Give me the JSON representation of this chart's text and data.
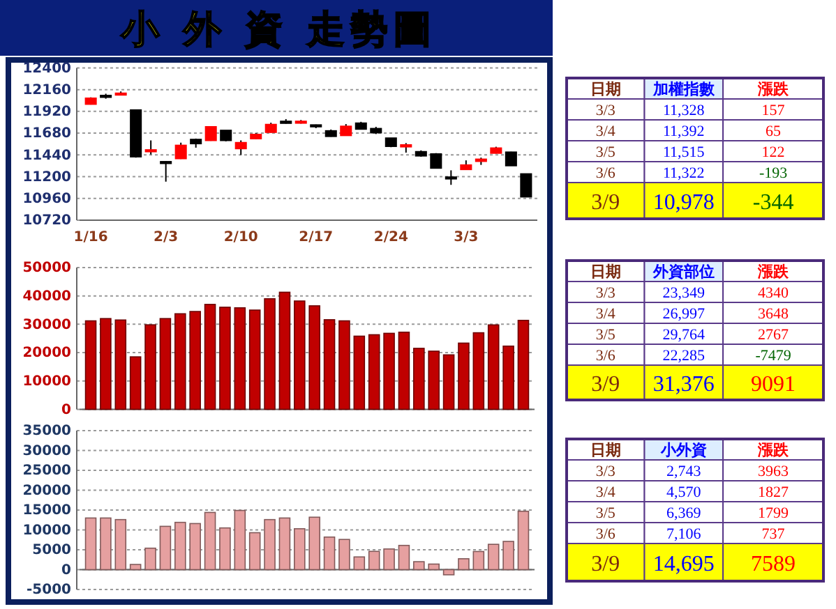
{
  "chart_data": [
    {
      "type": "candlestick",
      "title": "小 外 資 走勢圖",
      "categories": [
        "1/16",
        null,
        null,
        null,
        null,
        "2/3",
        null,
        null,
        null,
        null,
        "2/10",
        null,
        null,
        null,
        null,
        "2/17",
        null,
        null,
        null,
        null,
        "2/24",
        null,
        null,
        null,
        null,
        "3/3",
        null,
        null,
        null,
        null
      ],
      "ohlc": [
        [
          12000,
          12075,
          11995,
          12065
        ],
        [
          12095,
          12115,
          12060,
          12090
        ],
        [
          12115,
          12140,
          12110,
          12120
        ],
        [
          11935,
          11935,
          11410,
          11420
        ],
        [
          11490,
          11600,
          11445,
          11495
        ],
        [
          11365,
          11370,
          11145,
          11355
        ],
        [
          11400,
          11575,
          11395,
          11545
        ],
        [
          11610,
          11620,
          11520,
          11565
        ],
        [
          11600,
          11750,
          11595,
          11750
        ],
        [
          11710,
          11710,
          11590,
          11600
        ],
        [
          11510,
          11600,
          11440,
          11575
        ],
        [
          11620,
          11680,
          11615,
          11665
        ],
        [
          11690,
          11795,
          11685,
          11775
        ],
        [
          11810,
          11835,
          11785,
          11790
        ],
        [
          11800,
          11825,
          11785,
          11810
        ],
        [
          11770,
          11775,
          11735,
          11755
        ],
        [
          11705,
          11720,
          11640,
          11645
        ],
        [
          11655,
          11780,
          11650,
          11755
        ],
        [
          11790,
          11805,
          11720,
          11725
        ],
        [
          11730,
          11750,
          11670,
          11685
        ],
        [
          11625,
          11625,
          11525,
          11535
        ],
        [
          11530,
          11570,
          11465,
          11550
        ],
        [
          11475,
          11490,
          11420,
          11430
        ],
        [
          11450,
          11460,
          11290,
          11295
        ],
        [
          11195,
          11270,
          11110,
          11190
        ],
        [
          11280,
          11380,
          11275,
          11328
        ],
        [
          11370,
          11410,
          11330,
          11392
        ],
        [
          11460,
          11530,
          11455,
          11515
        ],
        [
          11470,
          11475,
          11320,
          11322
        ],
        [
          11230,
          11235,
          10978,
          10978
        ]
      ],
      "colors": [
        "#ff0000",
        "#000000",
        "#ff0000",
        "#000000",
        "#ff0000",
        "#000000",
        "#ff0000",
        "#000000",
        "#ff0000",
        "#000000",
        "#ff0000",
        "#ff0000",
        "#ff0000",
        "#000000",
        "#ff0000",
        "#000000",
        "#000000",
        "#ff0000",
        "#000000",
        "#000000",
        "#000000",
        "#ff0000",
        "#000000",
        "#000000",
        "#000000",
        "#ff0000",
        "#ff0000",
        "#ff0000",
        "#000000",
        "#000000"
      ],
      "ylim": [
        10720,
        12400
      ],
      "yticks": [
        10720,
        10960,
        11200,
        11440,
        11680,
        11920,
        12160,
        12400
      ],
      "grid": "y"
    },
    {
      "type": "other",
      "annotations": [
        "日期",
        "加權指數",
        "漲跌",
        "3/3",
        "11,328",
        "157",
        "3/4",
        "11,392",
        "65",
        "3/5",
        "11,515",
        "122",
        "3/6",
        "11,322",
        "-193",
        "3/9",
        "10,978",
        "-344"
      ],
      "colors": [
        "#7a2a10",
        "#0000ff",
        "#ff0000",
        "#7a2a10",
        "#0000ff",
        "#ff0000",
        "#7a2a10",
        "#0000ff",
        "#ff0000",
        "#7a2a10",
        "#0000ff",
        "#ff0000",
        "#7a2a10",
        "#0000ff",
        "#006400",
        "#7a2a10",
        "#0000ff",
        "#006400"
      ]
    },
    {
      "type": "bar",
      "categories": [
        null,
        null,
        null,
        null,
        null,
        null,
        null,
        null,
        null,
        null,
        null,
        null,
        null,
        null,
        null,
        null,
        null,
        null,
        null,
        null,
        null,
        null,
        null,
        null,
        null,
        null,
        null,
        null,
        null,
        null
      ],
      "values": [
        31200,
        32000,
        31500,
        18500,
        29800,
        32000,
        33700,
        34500,
        37000,
        36000,
        35800,
        35000,
        39000,
        41300,
        38200,
        36500,
        31600,
        31200,
        25800,
        26300,
        26800,
        27200,
        21500,
        20500,
        19200,
        23349,
        26997,
        29764,
        22285,
        31376
      ],
      "color": "#c00000",
      "ylim": [
        0,
        50000
      ],
      "yticks": [
        0,
        10000,
        20000,
        30000,
        40000,
        50000
      ],
      "grid": "y"
    },
    {
      "type": "other",
      "annotations": [
        "日期",
        "外資部位",
        "漲跌",
        "3/3",
        "23,349",
        "4340",
        "3/4",
        "26,997",
        "3648",
        "3/5",
        "29,764",
        "2767",
        "3/6",
        "22,285",
        "-7479",
        "3/9",
        "31,376",
        "9091"
      ],
      "colors": [
        "#7a2a10",
        "#0000ff",
        "#ff0000",
        "#7a2a10",
        "#0000ff",
        "#ff0000",
        "#7a2a10",
        "#0000ff",
        "#ff0000",
        "#7a2a10",
        "#0000ff",
        "#ff0000",
        "#7a2a10",
        "#0000ff",
        "#006400",
        "#7a2a10",
        "#0000ff",
        "#ff0000"
      ]
    },
    {
      "type": "bar",
      "categories": [
        null,
        null,
        null,
        null,
        null,
        null,
        null,
        null,
        null,
        null,
        null,
        null,
        null,
        null,
        null,
        null,
        null,
        null,
        null,
        null,
        null,
        null,
        null,
        null,
        null,
        null,
        null,
        null,
        null,
        null
      ],
      "values": [
        13000,
        13000,
        12600,
        1300,
        5400,
        10900,
        11900,
        11600,
        14400,
        10500,
        14900,
        9300,
        12600,
        13000,
        10300,
        13200,
        8200,
        7600,
        3200,
        4600,
        5200,
        6100,
        2000,
        1400,
        -1300,
        2743,
        4570,
        6369,
        7106,
        14695
      ],
      "color": "#e6a0a0",
      "ylim": [
        -5000,
        35000
      ],
      "yticks": [
        -5000,
        0,
        5000,
        10000,
        15000,
        20000,
        25000,
        30000,
        35000
      ],
      "grid": "y"
    },
    {
      "type": "other",
      "annotations": [
        "日期",
        "小外資",
        "漲跌",
        "3/3",
        "2,743",
        "3963",
        "3/4",
        "4,570",
        "1827",
        "3/5",
        "6,369",
        "1799",
        "3/6",
        "7,106",
        "737",
        "3/9",
        "14,695",
        "7589"
      ],
      "colors": [
        "#7a2a10",
        "#0000ff",
        "#ff0000",
        "#7a2a10",
        "#0000ff",
        "#ff0000",
        "#7a2a10",
        "#0000ff",
        "#ff0000",
        "#7a2a10",
        "#0000ff",
        "#ff0000",
        "#7a2a10",
        "#0000ff",
        "#ff0000",
        "#7a2a10",
        "#0000ff",
        "#ff0000"
      ]
    }
  ]
}
